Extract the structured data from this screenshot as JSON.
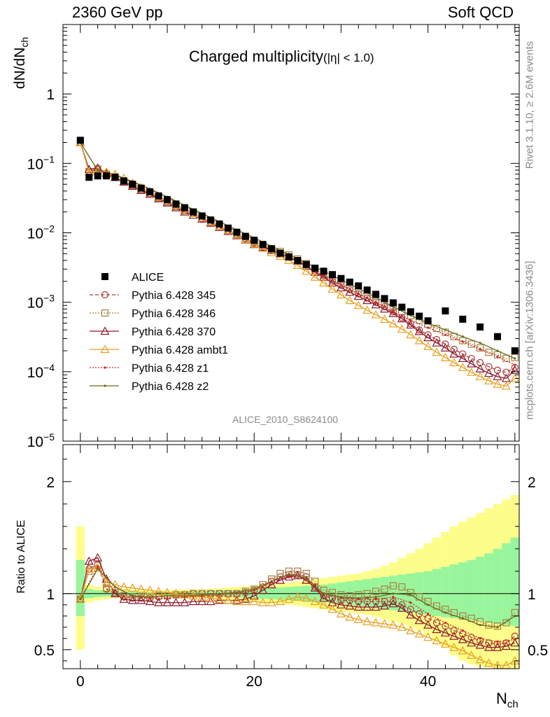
{
  "header": {
    "energy": "2360 GeV pp",
    "category": "Soft QCD",
    "plot_title": "Charged multiplicity",
    "plot_subtitle": "(|η| < 1.0)",
    "analysis_id": "ALICE_2010_S8624100",
    "side_rivet": "Rivet 3.1.10, ≥ 2.6M events",
    "side_source": "mcplots.cern.ch [arXiv:1306.3436]"
  },
  "chart_data": [
    {
      "type": "scatter",
      "panel": "main",
      "ylabel": "dN/dN_ch",
      "yscale": "log",
      "ylim": [
        1e-05,
        10
      ],
      "xlim": [
        -2,
        50.5
      ],
      "y_tick_labels": [
        "10^-5",
        "10^-4",
        "10^-3",
        "10^-2",
        "10^-1",
        "1"
      ],
      "x": [
        0,
        1,
        2,
        3,
        4,
        5,
        6,
        7,
        8,
        9,
        10,
        11,
        12,
        13,
        14,
        15,
        16,
        17,
        18,
        19,
        20,
        21,
        22,
        23,
        24,
        25,
        26,
        27,
        28,
        29,
        30,
        31,
        32,
        33,
        34,
        35,
        36,
        37,
        38,
        39,
        40,
        42,
        44,
        46,
        48,
        50
      ],
      "series": [
        {
          "name": "ALICE",
          "color": "#000000",
          "marker": "filled-square",
          "values": [
            0.215,
            0.063,
            0.066,
            0.066,
            0.063,
            0.056,
            0.05,
            0.044,
            0.039,
            0.034,
            0.03,
            0.026,
            0.023,
            0.02,
            0.0175,
            0.0153,
            0.0134,
            0.0117,
            0.0102,
            0.0089,
            0.0078,
            0.0068,
            0.0059,
            0.0051,
            0.0045,
            0.004,
            0.0035,
            0.0031,
            0.0028,
            0.0025,
            0.0022,
            0.00195,
            0.00172,
            0.0015,
            0.0013,
            0.00113,
            0.00098,
            0.00085,
            0.00073,
            0.00063,
            0.00054,
            0.00075,
            0.00057,
            0.00044,
            0.00032,
            0.0002
          ]
        },
        {
          "name": "Pythia 6.428 345",
          "color": "#b03636",
          "marker": "open-circle",
          "dash": "5,3",
          "step": 1,
          "start": 0,
          "values": [
            0.2,
            0.077,
            0.082,
            0.069,
            0.063,
            0.055,
            0.048,
            0.042,
            0.037,
            0.032,
            0.028,
            0.024,
            0.021,
            0.019,
            0.016,
            0.014,
            0.0124,
            0.0108,
            0.0094,
            0.0082,
            0.0071,
            0.0064,
            0.0057,
            0.0051,
            0.0045,
            0.004,
            0.0034,
            0.0028,
            0.0024,
            0.002,
            0.00175,
            0.00152,
            0.00132,
            0.00115,
            0.001,
            0.00086,
            0.00073,
            0.0006,
            0.00049,
            0.0004,
            0.00034,
            0.00029,
            0.00025,
            0.00021,
            0.00018,
            0.000155,
            0.000135,
            0.000118,
            0.000105,
            9.8e-05,
            0.000115
          ]
        },
        {
          "name": "Pythia 6.428 346",
          "color": "#a88040",
          "marker": "open-square",
          "dash": "2,2",
          "step": 1,
          "start": 0,
          "values": [
            0.2,
            0.076,
            0.083,
            0.07,
            0.064,
            0.055,
            0.048,
            0.042,
            0.037,
            0.032,
            0.028,
            0.024,
            0.021,
            0.019,
            0.0165,
            0.0145,
            0.0125,
            0.011,
            0.0096,
            0.0084,
            0.0073,
            0.0066,
            0.0059,
            0.0054,
            0.0048,
            0.0042,
            0.0036,
            0.003,
            0.0025,
            0.00215,
            0.00185,
            0.00162,
            0.00142,
            0.00125,
            0.0011,
            0.00097,
            0.00085,
            0.00074,
            0.00064,
            0.00055,
            0.00048,
            0.00042,
            0.00037,
            0.00032,
            0.00028,
            0.00025,
            0.00022,
            0.00019,
            0.000175,
            0.000155,
            0.00016
          ]
        },
        {
          "name": "Pythia 6.428 370",
          "color": "#8b1a2b",
          "marker": "open-triangle",
          "dash": "",
          "step": 1,
          "start": 0,
          "values": [
            0.2,
            0.082,
            0.086,
            0.072,
            0.063,
            0.054,
            0.047,
            0.041,
            0.036,
            0.031,
            0.027,
            0.023,
            0.02,
            0.018,
            0.0158,
            0.0138,
            0.012,
            0.0105,
            0.0091,
            0.0079,
            0.0068,
            0.0062,
            0.0056,
            0.005,
            0.0045,
            0.0039,
            0.0033,
            0.0027,
            0.0023,
            0.0019,
            0.00162,
            0.0014,
            0.00122,
            0.00106,
            0.00092,
            0.0008,
            0.00069,
            0.00058,
            0.00047,
            0.00038,
            0.00031,
            0.00026,
            0.00022,
            0.00018,
            0.000155,
            0.00013,
            0.00011,
            9.5e-05,
            8.5e-05,
            8e-05,
            0.000105
          ]
        },
        {
          "name": "Pythia 6.428 ambt1",
          "color": "#e8a020",
          "marker": "open-triangle",
          "dash": "",
          "step": 1,
          "start": 0,
          "values": [
            0.2,
            0.075,
            0.078,
            0.075,
            0.07,
            0.061,
            0.052,
            0.045,
            0.039,
            0.033,
            0.029,
            0.025,
            0.022,
            0.019,
            0.0165,
            0.0143,
            0.0125,
            0.0108,
            0.0093,
            0.008,
            0.0069,
            0.006,
            0.0052,
            0.0046,
            0.004,
            0.0034,
            0.0028,
            0.0023,
            0.0019,
            0.00155,
            0.00128,
            0.00106,
            0.0009,
            0.00077,
            0.00066,
            0.00057,
            0.00049,
            0.00041,
            0.00034,
            0.00028,
            0.00023,
            0.00019,
            0.00016,
            0.000135,
            0.000115,
            9.8e-05,
            8.5e-05,
            7.4e-05,
            6.6e-05,
            6.2e-05,
            8e-05
          ]
        },
        {
          "name": "Pythia 6.428 z1",
          "color": "#d42020",
          "marker": "dot",
          "dash": "2,2",
          "step": 2,
          "start": 0,
          "values": [
            0.2,
            0.08,
            0.067,
            0.054,
            0.042,
            0.032,
            0.024,
            0.018,
            0.0138,
            0.0105,
            0.008,
            0.006,
            0.0045,
            0.0033,
            0.0024,
            0.00178,
            0.00132,
            0.00098,
            0.00072,
            0.00055,
            0.00043,
            0.00034,
            0.00027,
            0.00021,
            0.000165,
            0.000125
          ]
        },
        {
          "name": "Pythia 6.428 z2",
          "color": "#6b6b1a",
          "marker": "dot",
          "dash": "",
          "step": 2,
          "start": 0,
          "values": [
            0.2,
            0.079,
            0.068,
            0.055,
            0.043,
            0.033,
            0.025,
            0.019,
            0.0145,
            0.011,
            0.0085,
            0.0064,
            0.0049,
            0.0037,
            0.0028,
            0.0021,
            0.00158,
            0.00118,
            0.00086,
            0.00065,
            0.0005,
            0.0004,
            0.00032,
            0.00026,
            0.0002,
            0.000155
          ]
        }
      ]
    },
    {
      "type": "line",
      "panel": "ratio",
      "xlabel": "N_ch",
      "ylabel": "Ratio to ALICE",
      "ylim": [
        0.33,
        2.33
      ],
      "xlim": [
        -2,
        50.5
      ],
      "x_tick_labels": [
        "0",
        "20",
        "40"
      ],
      "y_tick_labels": [
        "0.5",
        "1",
        "2"
      ],
      "reference": 1,
      "bands": {
        "x": [
          0,
          1,
          2,
          3,
          4,
          5,
          6,
          7,
          8,
          9,
          10,
          11,
          12,
          13,
          14,
          15,
          16,
          17,
          18,
          19,
          20,
          21,
          22,
          23,
          24,
          25,
          26,
          27,
          28,
          29,
          30,
          31,
          32,
          33,
          34,
          35,
          36,
          37,
          38,
          39,
          40,
          41,
          42,
          43,
          44,
          45,
          46,
          47,
          48,
          49,
          50
        ],
        "yellow_lo": [
          0.5,
          0.92,
          0.94,
          0.95,
          0.96,
          0.96,
          0.965,
          0.965,
          0.97,
          0.97,
          0.97,
          0.965,
          0.965,
          0.96,
          0.96,
          0.955,
          0.95,
          0.945,
          0.94,
          0.935,
          0.93,
          0.92,
          0.915,
          0.91,
          0.9,
          0.89,
          0.88,
          0.87,
          0.86,
          0.85,
          0.84,
          0.83,
          0.82,
          0.81,
          0.79,
          0.77,
          0.75,
          0.73,
          0.7,
          0.67,
          0.63,
          0.58,
          0.52,
          0.45,
          0.4,
          0.37,
          0.35,
          0.34,
          0.33,
          0.33,
          0.33
        ],
        "yellow_hi": [
          1.6,
          1.08,
          1.06,
          1.05,
          1.04,
          1.04,
          1.035,
          1.035,
          1.03,
          1.03,
          1.03,
          1.035,
          1.035,
          1.04,
          1.04,
          1.045,
          1.05,
          1.055,
          1.06,
          1.065,
          1.07,
          1.08,
          1.085,
          1.09,
          1.1,
          1.11,
          1.12,
          1.13,
          1.14,
          1.15,
          1.16,
          1.17,
          1.18,
          1.2,
          1.22,
          1.25,
          1.28,
          1.32,
          1.36,
          1.4,
          1.45,
          1.5,
          1.55,
          1.6,
          1.64,
          1.68,
          1.72,
          1.76,
          1.8,
          1.84,
          1.88
        ],
        "green_lo": [
          0.8,
          0.96,
          0.97,
          0.975,
          0.98,
          0.98,
          0.98,
          0.985,
          0.985,
          0.985,
          0.985,
          0.985,
          0.98,
          0.98,
          0.98,
          0.975,
          0.975,
          0.97,
          0.97,
          0.965,
          0.96,
          0.955,
          0.95,
          0.945,
          0.94,
          0.935,
          0.93,
          0.925,
          0.92,
          0.915,
          0.91,
          0.9,
          0.89,
          0.88,
          0.87,
          0.86,
          0.85,
          0.84,
          0.83,
          0.82,
          0.81,
          0.8,
          0.79,
          0.78,
          0.77,
          0.76,
          0.75,
          0.74,
          0.73,
          0.72,
          0.71
        ],
        "green_hi": [
          1.3,
          1.04,
          1.03,
          1.025,
          1.02,
          1.02,
          1.02,
          1.015,
          1.015,
          1.015,
          1.015,
          1.015,
          1.02,
          1.02,
          1.02,
          1.025,
          1.025,
          1.03,
          1.03,
          1.035,
          1.04,
          1.045,
          1.05,
          1.055,
          1.06,
          1.065,
          1.07,
          1.075,
          1.08,
          1.09,
          1.1,
          1.11,
          1.12,
          1.13,
          1.14,
          1.15,
          1.16,
          1.17,
          1.18,
          1.19,
          1.2,
          1.22,
          1.24,
          1.26,
          1.28,
          1.3,
          1.33,
          1.36,
          1.4,
          1.45,
          1.5
        ]
      },
      "series": [
        {
          "name": "Pythia 6.428 345",
          "color": "#b03636",
          "marker": "open-circle",
          "dash": "5,3",
          "step": 1,
          "start": 0,
          "values": [
            0.95,
            1.22,
            1.26,
            1.04,
            1.0,
            0.97,
            0.96,
            0.96,
            0.96,
            0.97,
            0.98,
            0.99,
            0.99,
            1.0,
            1.0,
            1.0,
            1.0,
            1.0,
            1.0,
            1.01,
            1.03,
            1.06,
            1.11,
            1.15,
            1.17,
            1.17,
            1.15,
            1.06,
            0.98,
            0.96,
            0.94,
            0.94,
            0.93,
            0.93,
            0.93,
            0.93,
            0.93,
            0.9,
            0.86,
            0.82,
            0.78,
            0.74,
            0.71,
            0.67,
            0.64,
            0.61,
            0.58,
            0.56,
            0.55,
            0.56,
            0.62
          ]
        },
        {
          "name": "Pythia 6.428 346",
          "color": "#a88040",
          "marker": "open-square",
          "dash": "2,2",
          "step": 1,
          "start": 0,
          "values": [
            0.95,
            1.2,
            1.25,
            1.05,
            1.01,
            0.98,
            0.97,
            0.97,
            0.97,
            0.98,
            0.98,
            0.99,
            0.99,
            1.0,
            1.0,
            1.0,
            1.0,
            1.0,
            1.0,
            1.02,
            1.04,
            1.08,
            1.13,
            1.18,
            1.2,
            1.2,
            1.18,
            1.11,
            1.03,
            1.01,
            0.99,
            0.98,
            0.99,
            1.0,
            1.02,
            1.04,
            1.07,
            1.06,
            1.01,
            0.97,
            0.93,
            0.89,
            0.86,
            0.83,
            0.8,
            0.78,
            0.75,
            0.72,
            0.71,
            0.74,
            0.83
          ]
        },
        {
          "name": "Pythia 6.428 370",
          "color": "#8b1a2b",
          "marker": "open-triangle",
          "dash": "",
          "step": 1,
          "start": 0,
          "values": [
            0.95,
            1.29,
            1.32,
            1.13,
            1.0,
            0.95,
            0.94,
            0.94,
            0.93,
            0.92,
            0.92,
            0.92,
            0.92,
            0.93,
            0.93,
            0.93,
            0.94,
            0.94,
            0.94,
            0.95,
            0.98,
            1.03,
            1.08,
            1.12,
            1.15,
            1.16,
            1.12,
            1.05,
            0.96,
            0.92,
            0.9,
            0.89,
            0.88,
            0.88,
            0.88,
            0.89,
            0.91,
            0.87,
            0.81,
            0.76,
            0.72,
            0.68,
            0.65,
            0.62,
            0.59,
            0.56,
            0.54,
            0.52,
            0.52,
            0.53,
            0.56
          ]
        },
        {
          "name": "Pythia 6.428 ambt1",
          "color": "#e8a020",
          "marker": "open-triangle",
          "dash": "",
          "step": 1,
          "start": 0,
          "values": [
            0.95,
            1.22,
            1.23,
            1.1,
            1.08,
            1.06,
            1.05,
            1.04,
            1.03,
            1.02,
            1.01,
            1.0,
            0.99,
            0.98,
            0.97,
            0.96,
            0.95,
            0.94,
            0.93,
            0.93,
            0.93,
            0.92,
            0.92,
            0.93,
            0.95,
            0.97,
            0.96,
            0.93,
            0.9,
            0.86,
            0.82,
            0.79,
            0.77,
            0.75,
            0.74,
            0.73,
            0.72,
            0.7,
            0.67,
            0.64,
            0.61,
            0.58,
            0.55,
            0.52,
            0.49,
            0.45,
            0.41,
            0.38,
            0.36,
            0.36,
            0.4
          ]
        },
        {
          "name": "Pythia 6.428 z1",
          "color": "#d42020",
          "marker": "dot",
          "dash": "2,2",
          "step": 2,
          "start": 0,
          "values": [
            0.95,
            1.24,
            1.06,
            0.98,
            0.96,
            0.96,
            0.97,
            0.98,
            0.99,
            1.0,
            1.03,
            1.1,
            1.16,
            1.12,
            0.99,
            0.96,
            0.95,
            0.95,
            0.97,
            0.92,
            0.82,
            0.74,
            0.67,
            0.6,
            0.57,
            0.59
          ]
        },
        {
          "name": "Pythia 6.428 z2",
          "color": "#6b6b1a",
          "marker": "dot",
          "dash": "",
          "step": 2,
          "start": 0,
          "values": [
            0.95,
            1.22,
            1.06,
            0.98,
            0.97,
            0.98,
            0.98,
            0.99,
            1.0,
            1.01,
            1.04,
            1.11,
            1.17,
            1.14,
            1.0,
            0.97,
            0.96,
            0.97,
            1.0,
            0.99,
            0.9,
            0.83,
            0.78,
            0.72,
            0.7,
            0.8
          ]
        }
      ]
    }
  ]
}
